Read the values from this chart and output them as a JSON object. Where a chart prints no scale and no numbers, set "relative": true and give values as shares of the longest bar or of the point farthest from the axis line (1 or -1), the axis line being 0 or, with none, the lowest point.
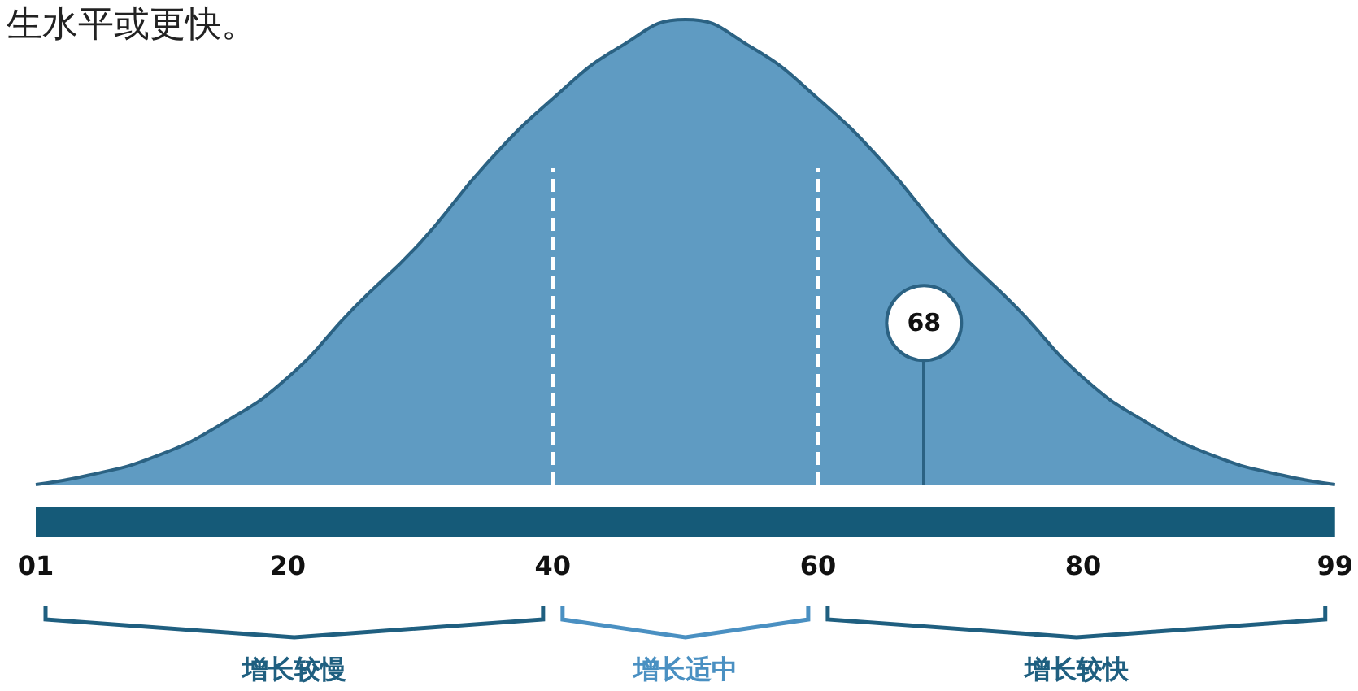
{
  "chart_data": {
    "type": "area",
    "relative": true,
    "annotations": [
      "生水平或更快。",
      "增长较慢",
      "增长适中",
      "增长较快"
    ],
    "x": [
      1,
      5,
      10,
      15,
      20,
      25,
      30,
      35,
      40,
      45,
      50,
      55,
      60,
      65,
      70,
      75,
      80,
      85,
      90,
      95,
      99
    ],
    "series": [
      {
        "color": "#5f9bc2",
        "values": [
          0,
          0.02,
          0.06,
          0.13,
          0.23,
          0.38,
          0.52,
          0.69,
          0.83,
          0.94,
          1,
          0.94,
          0.83,
          0.69,
          0.52,
          0.38,
          0.23,
          0.13,
          0.06,
          0.02,
          0
        ]
      }
    ],
    "xlim": [
      1,
      99
    ],
    "xticks": [
      {
        "value": 1,
        "label": "01"
      },
      20,
      40,
      60,
      80,
      99
    ],
    "ref_lines": [
      {
        "axis": "x",
        "value": 40,
        "label": null,
        "color": "#ffffff",
        "line_style": "dashed"
      },
      {
        "axis": "x",
        "value": 60,
        "label": null,
        "color": "#ffffff",
        "line_style": "dashed"
      },
      {
        "axis": "x",
        "value": 68,
        "label": "68",
        "color": "#2b6283",
        "line_style": "solid"
      }
    ],
    "grid": false,
    "marker": "none"
  }
}
